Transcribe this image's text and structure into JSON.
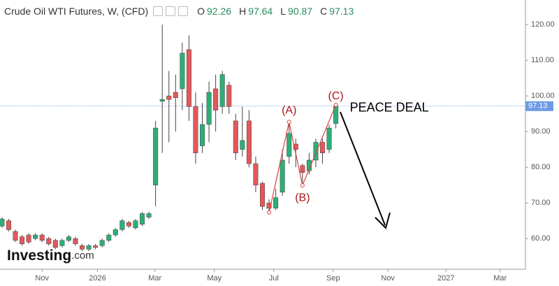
{
  "chart_data": {
    "type": "candlestick",
    "title": "Crude Oil WTI Futures, W, (CFD)",
    "ohlc_header": [
      {
        "label": "O",
        "value": 92.26
      },
      {
        "label": "H",
        "value": 97.64
      },
      {
        "label": "L",
        "value": 90.87
      },
      {
        "label": "C",
        "value": 97.13
      }
    ],
    "up_color": "#2eae76",
    "down_color": "#e5575a",
    "x": [
      0,
      1,
      2,
      3,
      4,
      5,
      6,
      7,
      8,
      9,
      10,
      11,
      12,
      13,
      14,
      15,
      16,
      17,
      18,
      19,
      20,
      21,
      22,
      23,
      24,
      25,
      26,
      27,
      28,
      29,
      30,
      31,
      32,
      33,
      34,
      35,
      36,
      37,
      38,
      39,
      40,
      41,
      42,
      43,
      44,
      45,
      46,
      47,
      48,
      49,
      50
    ],
    "open": [
      63.5,
      65,
      62,
      60.5,
      61,
      60,
      61,
      60,
      59.5,
      58,
      59.5,
      60,
      58,
      57,
      58,
      58,
      59.5,
      61,
      62.5,
      64.5,
      63,
      64,
      66,
      75,
      98.5,
      100,
      101,
      102,
      113,
      97,
      86,
      92,
      102,
      97,
      103,
      93,
      85,
      93,
      81,
      75.5,
      70,
      68.5,
      73,
      83,
      86.5,
      80.5,
      79,
      82,
      87,
      85,
      92.26
    ],
    "high": [
      66,
      65.5,
      62.5,
      61,
      61.5,
      61.5,
      61.5,
      60.5,
      60,
      60,
      61,
      60.5,
      58.5,
      58.5,
      58.5,
      60,
      61.5,
      63,
      65.5,
      65,
      65.5,
      67.5,
      67.5,
      93,
      120,
      107,
      106,
      115,
      117,
      101,
      98,
      104,
      106,
      107,
      104,
      95,
      97,
      96,
      83,
      76,
      71,
      74,
      85,
      92.5,
      88,
      81,
      84,
      88,
      88,
      92,
      97.64
    ],
    "low": [
      63,
      62,
      59,
      58,
      58.5,
      59.5,
      59,
      58,
      57,
      57.5,
      59,
      58,
      56.5,
      56.5,
      57,
      57.5,
      59,
      60.5,
      62,
      63,
      62.5,
      63.5,
      65.5,
      69,
      84,
      87,
      90,
      96,
      93,
      81,
      84,
      87,
      90,
      95,
      95,
      82,
      83,
      80,
      73,
      68,
      67,
      68,
      72,
      81,
      80,
      75,
      78,
      80,
      81,
      84,
      90.87
    ],
    "close": [
      65.5,
      62.5,
      59.5,
      58.5,
      59,
      61,
      59.5,
      58.5,
      57.5,
      59.5,
      60.5,
      58.5,
      57,
      58,
      57.5,
      59.5,
      61,
      62.5,
      65,
      63.5,
      65,
      67,
      67,
      91,
      99,
      99,
      99.5,
      112,
      97,
      84,
      92,
      101,
      96,
      106,
      97,
      84,
      87.5,
      81,
      75,
      69,
      68.5,
      71.5,
      82,
      89.5,
      85,
      78.5,
      82,
      87,
      84,
      91,
      97.13
    ],
    "zigzag": {
      "x": [
        40,
        43,
        45,
        50
      ],
      "y": [
        67.3,
        92.7,
        74.9,
        97.5
      ],
      "color": "#d9443f"
    },
    "annotations": [
      "(A)",
      "(B)",
      "(C)",
      "PEACE DEAL"
    ],
    "watermark": [
      "Investing",
      ".com"
    ],
    "xlim": [
      -0.3,
      78.4
    ],
    "ylim": [
      51.4,
      126.9
    ],
    "xticks": [
      {
        "value": 6,
        "label": "Nov"
      },
      {
        "value": 14.3,
        "label": "2026"
      },
      {
        "value": 22.9,
        "label": "Mar"
      },
      {
        "value": 31.8,
        "label": "May"
      },
      {
        "value": 40.7,
        "label": "Jul"
      },
      {
        "value": 49.6,
        "label": "Sep"
      },
      {
        "value": 57.8,
        "label": "Nov"
      },
      {
        "value": 66.5,
        "label": "2027"
      },
      {
        "value": 74.6,
        "label": "Mar"
      }
    ],
    "yticks": [
      {
        "value": 60,
        "label": "60.00"
      },
      {
        "value": 70,
        "label": "70.00"
      },
      {
        "value": 80,
        "label": "80.00"
      },
      {
        "value": 90,
        "label": "90.00"
      },
      {
        "value": 100,
        "label": "100.00"
      },
      {
        "value": 110,
        "label": "110.00"
      },
      {
        "value": 120,
        "label": "120.00"
      }
    ],
    "grid": false
  }
}
